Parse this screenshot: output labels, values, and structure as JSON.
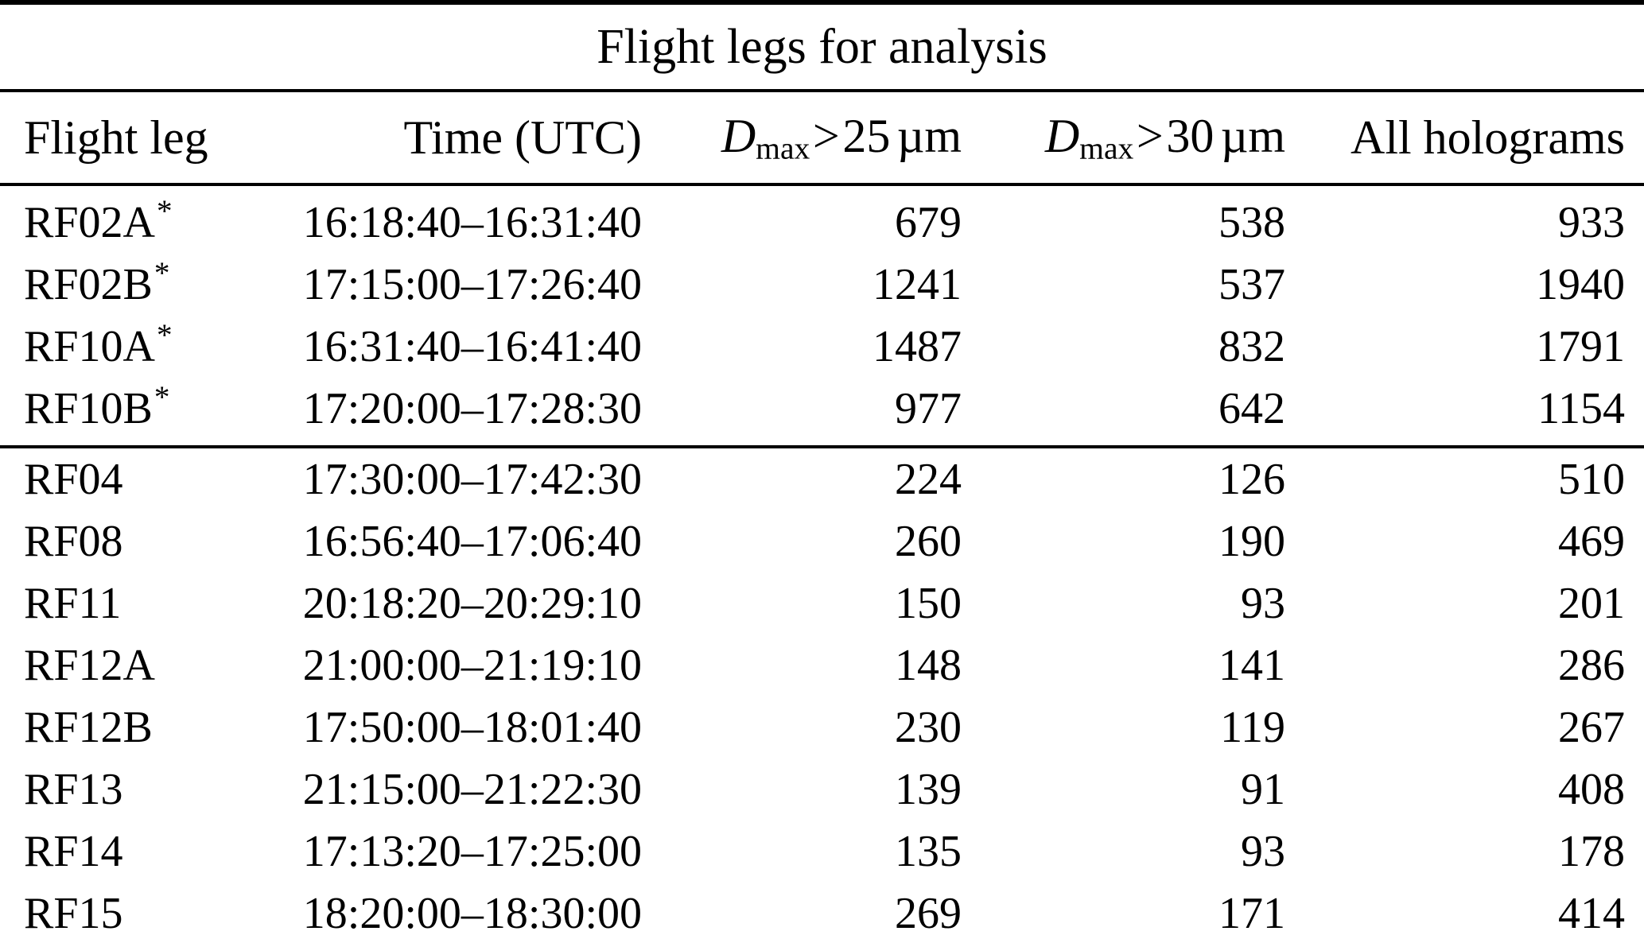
{
  "page": {
    "background": "#ffffff",
    "text_color": "#000000",
    "rule_color": "#000000"
  },
  "table": {
    "title": "Flight legs for analysis",
    "header": {
      "flight_leg": "Flight leg",
      "time": "Time (UTC)",
      "dmax25": {
        "symbol": "D",
        "subscript": "max",
        "operator": ">",
        "value": "25",
        "unit": "µm"
      },
      "dmax30": {
        "symbol": "D",
        "subscript": "max",
        "operator": ">",
        "value": "30",
        "unit": "µm"
      },
      "all_holograms": "All holograms"
    },
    "groups": [
      {
        "rows": [
          {
            "leg": "RF02A",
            "star": "*",
            "time": "16:18:40–16:31:40",
            "d25": "679",
            "d30": "538",
            "all": "933"
          },
          {
            "leg": "RF02B",
            "star": "*",
            "time": "17:15:00–17:26:40",
            "d25": "1241",
            "d30": "537",
            "all": "1940"
          },
          {
            "leg": "RF10A",
            "star": "*",
            "time": "16:31:40–16:41:40",
            "d25": "1487",
            "d30": "832",
            "all": "1791"
          },
          {
            "leg": "RF10B",
            "star": "*",
            "time": "17:20:00–17:28:30",
            "d25": "977",
            "d30": "642",
            "all": "1154"
          }
        ]
      },
      {
        "rows": [
          {
            "leg": "RF04",
            "star": "",
            "time": "17:30:00–17:42:30",
            "d25": "224",
            "d30": "126",
            "all": "510"
          },
          {
            "leg": "RF08",
            "star": "",
            "time": "16:56:40–17:06:40",
            "d25": "260",
            "d30": "190",
            "all": "469"
          },
          {
            "leg": "RF11",
            "star": "",
            "time": "20:18:20–20:29:10",
            "d25": "150",
            "d30": "93",
            "all": "201"
          },
          {
            "leg": "RF12A",
            "star": "",
            "time": "21:00:00–21:19:10",
            "d25": "148",
            "d30": "141",
            "all": "286"
          },
          {
            "leg": "RF12B",
            "star": "",
            "time": "17:50:00–18:01:40",
            "d25": "230",
            "d30": "119",
            "all": "267"
          },
          {
            "leg": "RF13",
            "star": "",
            "time": "21:15:00–21:22:30",
            "d25": "139",
            "d30": "91",
            "all": "408"
          },
          {
            "leg": "RF14",
            "star": "",
            "time": "17:13:20–17:25:00",
            "d25": "135",
            "d30": "93",
            "all": "178"
          },
          {
            "leg": "RF15",
            "star": "",
            "time": "18:20:00–18:30:00",
            "d25": "269",
            "d30": "171",
            "all": "414"
          }
        ]
      }
    ]
  }
}
